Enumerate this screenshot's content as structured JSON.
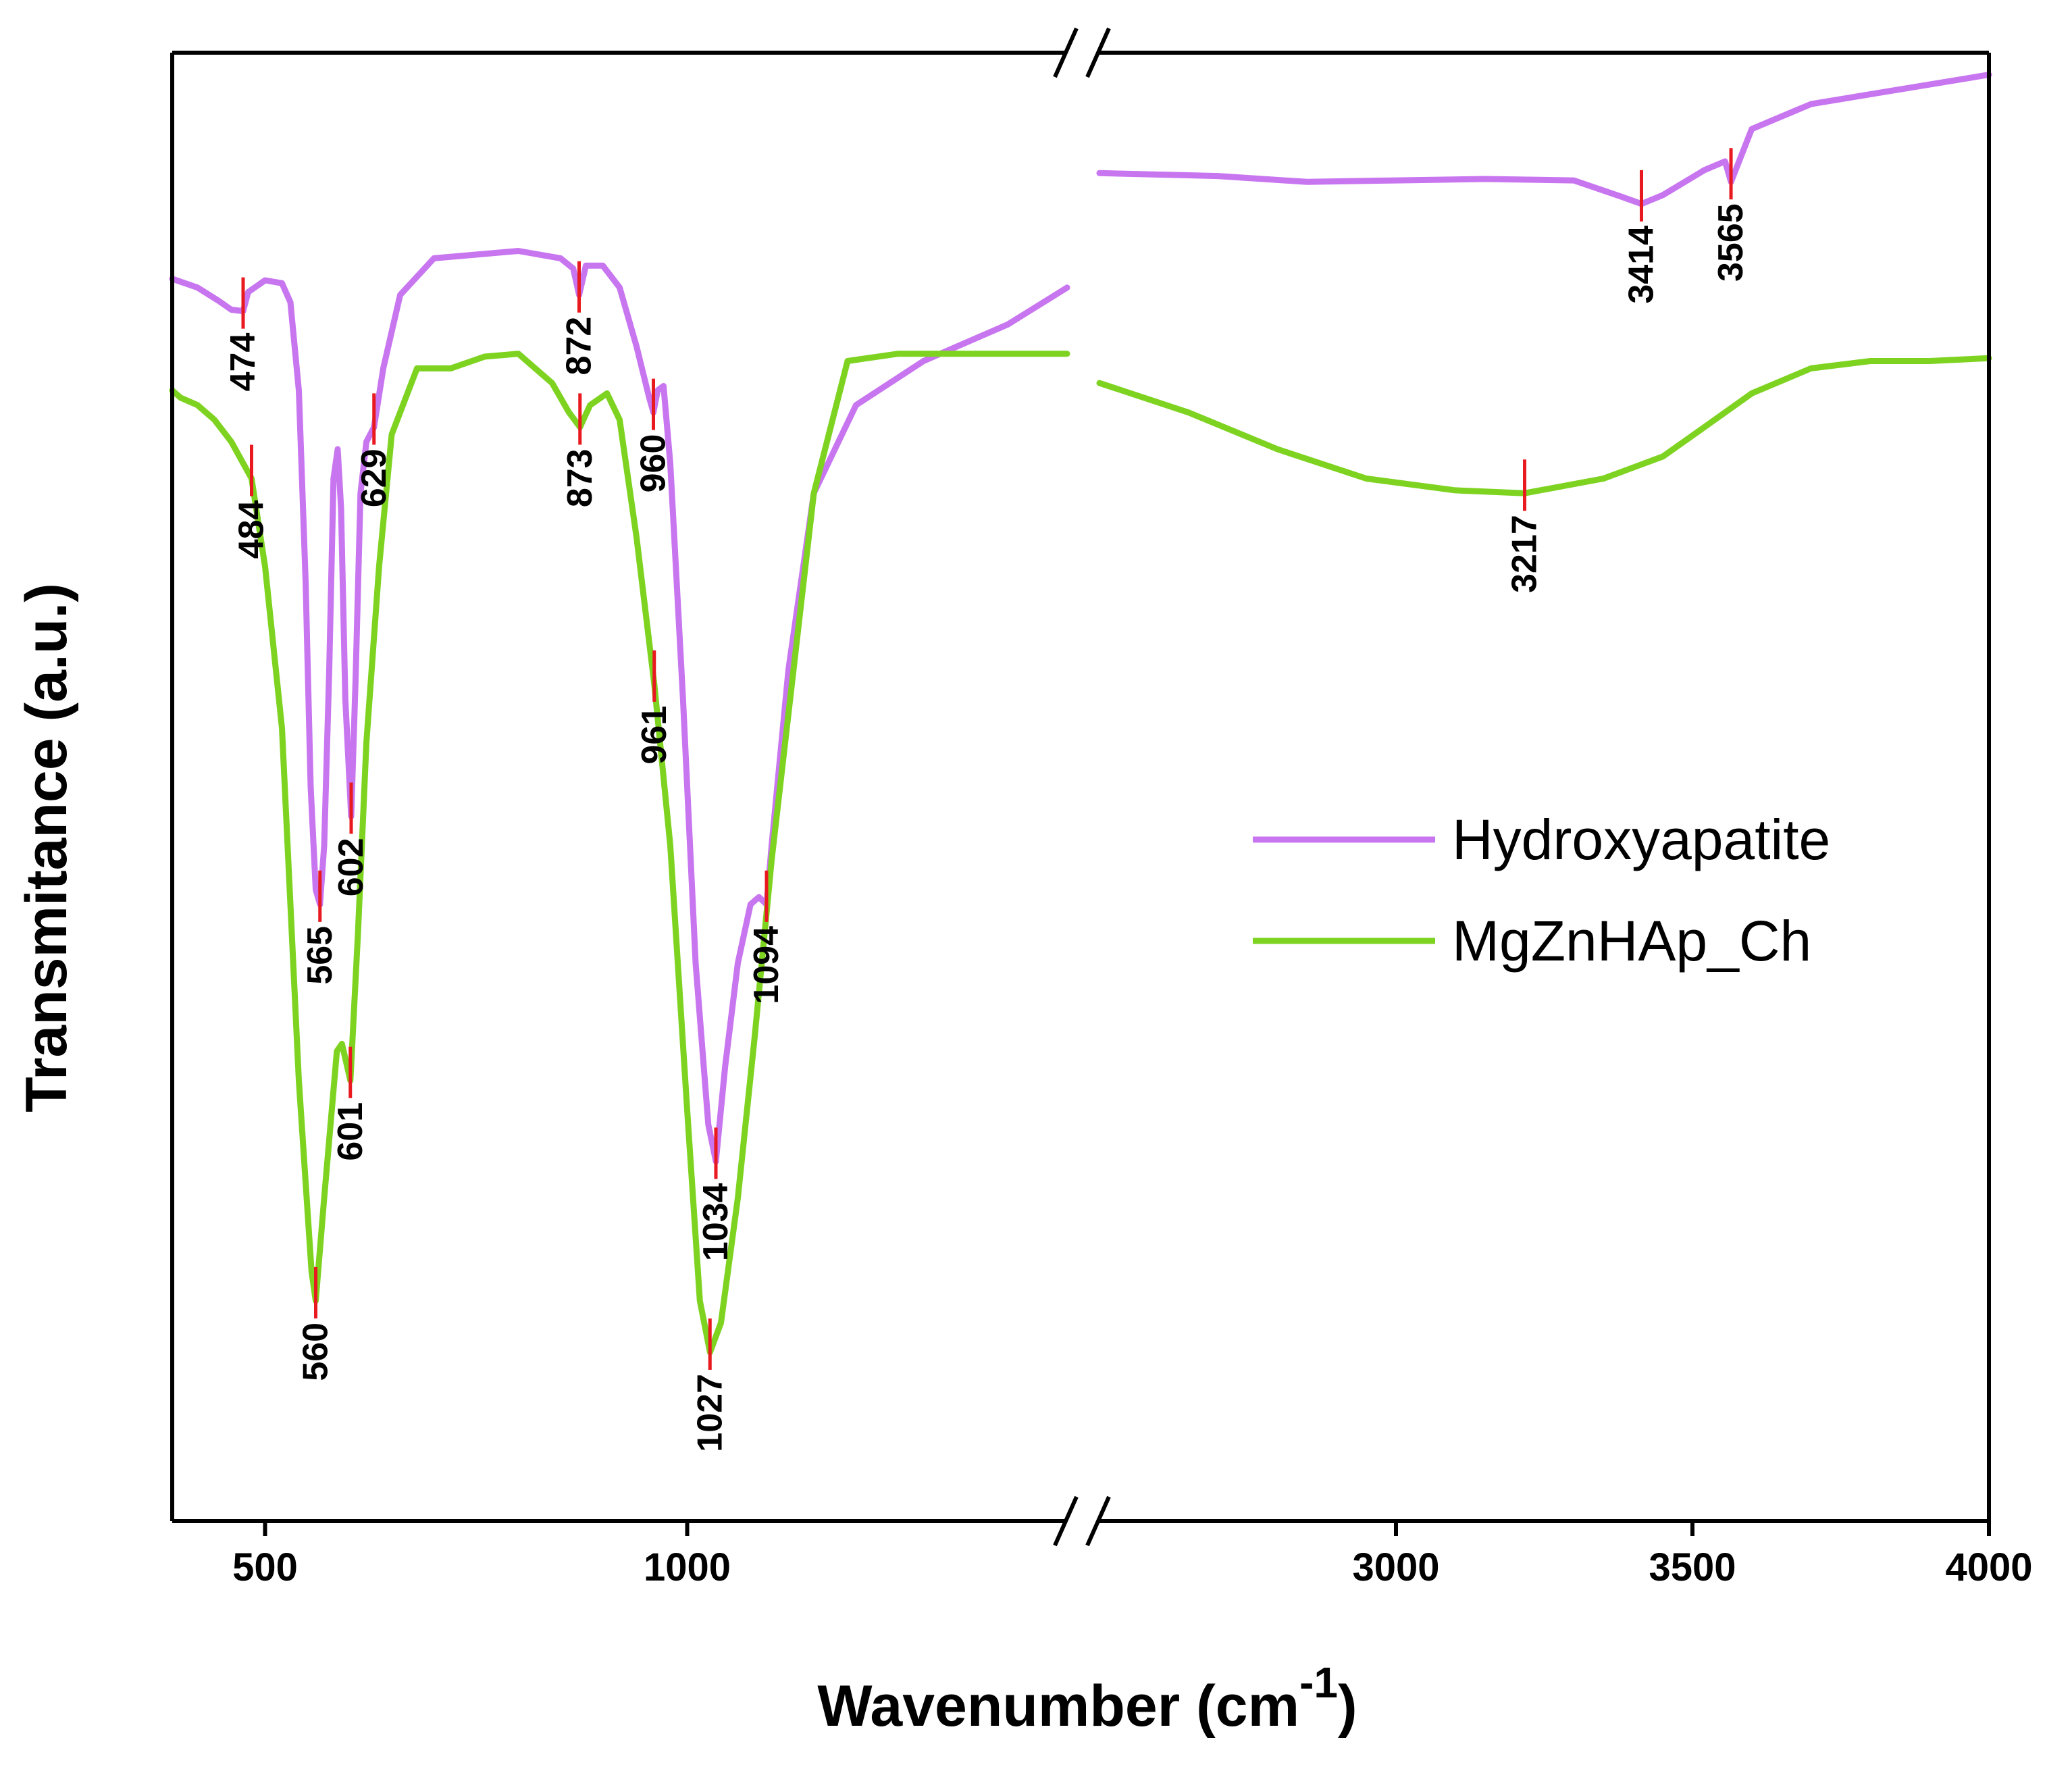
{
  "chart_data": {
    "type": "line",
    "title": "",
    "xlabel": "Wavenumber (cm",
    "xlabel_superscript": "-1",
    "xlabel_suffix": ")",
    "ylabel": "Transmitance (a.u.)",
    "xlim": [
      400,
      4000
    ],
    "axis_break": {
      "left_segment": [
        390,
        1450
      ],
      "right_segment": [
        2500,
        4000
      ]
    },
    "ylim": [
      0,
      100
    ],
    "y_ticks_shown": false,
    "x_ticks": [
      {
        "value": 500,
        "label": "500"
      },
      {
        "value": 1000,
        "label": "1000"
      },
      {
        "value": 3000,
        "label": "3000"
      },
      {
        "value": 3500,
        "label": "3500"
      },
      {
        "value": 4000,
        "label": "4000"
      }
    ],
    "legend": {
      "placement": "center-right"
    },
    "peak_marker_color": "#e8191f",
    "series": [
      {
        "name": "Hydroxyapatite",
        "color": "#c875f0",
        "points": [
          [
            390,
            84.6
          ],
          [
            420,
            84.0
          ],
          [
            445,
            83.1
          ],
          [
            460,
            82.5
          ],
          [
            474,
            82.4
          ],
          [
            480,
            83.7
          ],
          [
            500,
            84.5
          ],
          [
            520,
            84.3
          ],
          [
            530,
            83.0
          ],
          [
            540,
            77.0
          ],
          [
            548,
            64.0
          ],
          [
            554,
            50.0
          ],
          [
            560,
            43.0
          ],
          [
            565,
            42.0
          ],
          [
            570,
            46.0
          ],
          [
            576,
            58.0
          ],
          [
            581,
            71.0
          ],
          [
            586,
            73.0
          ],
          [
            590,
            69.0
          ],
          [
            595,
            56.0
          ],
          [
            602,
            48.0
          ],
          [
            607,
            57.0
          ],
          [
            613,
            70.0
          ],
          [
            620,
            73.5
          ],
          [
            629,
            74.5
          ],
          [
            640,
            78.5
          ],
          [
            660,
            83.5
          ],
          [
            700,
            86.0
          ],
          [
            800,
            86.5
          ],
          [
            850,
            86.0
          ],
          [
            865,
            85.3
          ],
          [
            872,
            83.5
          ],
          [
            880,
            85.5
          ],
          [
            900,
            85.5
          ],
          [
            920,
            84.0
          ],
          [
            940,
            80.0
          ],
          [
            955,
            76.5
          ],
          [
            960,
            75.5
          ],
          [
            965,
            77.0
          ],
          [
            972,
            77.3
          ],
          [
            980,
            72.0
          ],
          [
            995,
            56.0
          ],
          [
            1010,
            38.0
          ],
          [
            1025,
            27.0
          ],
          [
            1034,
            24.5
          ],
          [
            1045,
            31.0
          ],
          [
            1060,
            38.0
          ],
          [
            1075,
            42.0
          ],
          [
            1085,
            42.5
          ],
          [
            1094,
            42.0
          ],
          [
            1100,
            46.0
          ],
          [
            1120,
            58.0
          ],
          [
            1150,
            70.0
          ],
          [
            1200,
            76.0
          ],
          [
            1280,
            79.0
          ],
          [
            1380,
            81.5
          ],
          [
            1450,
            84.0
          ],
          [
            2500,
            91.8
          ],
          [
            2700,
            91.6
          ],
          [
            2850,
            91.2
          ],
          [
            3000,
            91.3
          ],
          [
            3150,
            91.4
          ],
          [
            3300,
            91.3
          ],
          [
            3380,
            90.2
          ],
          [
            3414,
            89.7
          ],
          [
            3450,
            90.3
          ],
          [
            3520,
            92.0
          ],
          [
            3555,
            92.6
          ],
          [
            3565,
            91.2
          ],
          [
            3600,
            94.8
          ],
          [
            3700,
            96.5
          ],
          [
            3850,
            97.5
          ],
          [
            4000,
            98.5
          ]
        ]
      },
      {
        "name": "MgZnHAp_Ch",
        "color": "#7ed321",
        "points": [
          [
            390,
            77.0
          ],
          [
            400,
            76.5
          ],
          [
            420,
            76.0
          ],
          [
            440,
            75.0
          ],
          [
            460,
            73.5
          ],
          [
            484,
            71.0
          ],
          [
            500,
            65.0
          ],
          [
            520,
            54.0
          ],
          [
            540,
            30.0
          ],
          [
            555,
            17.0
          ],
          [
            560,
            15.0
          ],
          [
            570,
            22.0
          ],
          [
            585,
            32.0
          ],
          [
            591,
            32.5
          ],
          [
            601,
            30.0
          ],
          [
            610,
            40.0
          ],
          [
            620,
            53.0
          ],
          [
            635,
            65.0
          ],
          [
            650,
            74.0
          ],
          [
            680,
            78.5
          ],
          [
            720,
            78.5
          ],
          [
            760,
            79.3
          ],
          [
            800,
            79.5
          ],
          [
            840,
            77.5
          ],
          [
            860,
            75.5
          ],
          [
            873,
            74.5
          ],
          [
            885,
            76.0
          ],
          [
            905,
            76.8
          ],
          [
            920,
            75.0
          ],
          [
            940,
            67.0
          ],
          [
            961,
            57.0
          ],
          [
            980,
            46.0
          ],
          [
            1000,
            28.0
          ],
          [
            1015,
            15.0
          ],
          [
            1027,
            11.5
          ],
          [
            1040,
            13.5
          ],
          [
            1060,
            22.0
          ],
          [
            1080,
            33.0
          ],
          [
            1100,
            45.0
          ],
          [
            1150,
            70.0
          ],
          [
            1190,
            79.0
          ],
          [
            1250,
            79.5
          ],
          [
            1350,
            79.5
          ],
          [
            1450,
            79.5
          ],
          [
            2500,
            77.5
          ],
          [
            2650,
            75.5
          ],
          [
            2800,
            73.0
          ],
          [
            2950,
            71.0
          ],
          [
            3100,
            70.2
          ],
          [
            3217,
            70.0
          ],
          [
            3350,
            71.0
          ],
          [
            3450,
            72.5
          ],
          [
            3520,
            74.5
          ],
          [
            3600,
            76.8
          ],
          [
            3700,
            78.5
          ],
          [
            3800,
            79.0
          ],
          [
            3900,
            79.0
          ],
          [
            4000,
            79.2
          ]
        ]
      }
    ],
    "annotations": [
      {
        "text": "474",
        "series": "Hydroxyapatite",
        "x": 474,
        "side": "below"
      },
      {
        "text": "565",
        "series": "Hydroxyapatite",
        "x": 565,
        "side": "below"
      },
      {
        "text": "602",
        "series": "Hydroxyapatite",
        "x": 602,
        "side": "below"
      },
      {
        "text": "629",
        "series": "Hydroxyapatite",
        "x": 629,
        "side": "below"
      },
      {
        "text": "872",
        "series": "Hydroxyapatite",
        "x": 872,
        "side": "below"
      },
      {
        "text": "960",
        "series": "Hydroxyapatite",
        "x": 960,
        "side": "below"
      },
      {
        "text": "1034",
        "series": "Hydroxyapatite",
        "x": 1034,
        "side": "below"
      },
      {
        "text": "1094",
        "series": "Hydroxyapatite",
        "x": 1094,
        "side": "below"
      },
      {
        "text": "3414",
        "series": "Hydroxyapatite",
        "x": 3414,
        "side": "below"
      },
      {
        "text": "3565",
        "series": "Hydroxyapatite",
        "x": 3565,
        "side": "below"
      },
      {
        "text": "484",
        "series": "MgZnHAp_Ch",
        "x": 484,
        "side": "below"
      },
      {
        "text": "560",
        "series": "MgZnHAp_Ch",
        "x": 560,
        "side": "below"
      },
      {
        "text": "601",
        "series": "MgZnHAp_Ch",
        "x": 601,
        "side": "below"
      },
      {
        "text": "873",
        "series": "MgZnHAp_Ch",
        "x": 873,
        "side": "below"
      },
      {
        "text": "961",
        "series": "MgZnHAp_Ch",
        "x": 961,
        "side": "below"
      },
      {
        "text": "1027",
        "series": "MgZnHAp_Ch",
        "x": 1027,
        "side": "below"
      },
      {
        "text": "3217",
        "series": "MgZnHAp_Ch",
        "x": 3217,
        "side": "below"
      }
    ]
  }
}
